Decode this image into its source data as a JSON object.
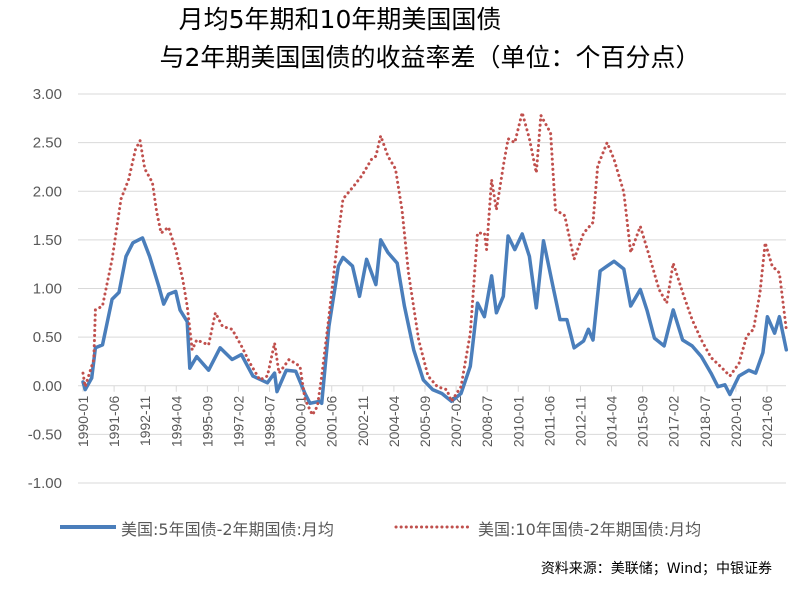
{
  "chart_data": {
    "type": "line",
    "title": [
      "月均5年期和10年期美国国债",
      "与2年期美国国债的收益率差（单位：个百分点）"
    ],
    "xlabel": "",
    "ylabel": "",
    "ylim": [
      -1.0,
      3.0
    ],
    "ytick_labels": [
      "3.00",
      "2.50",
      "2.00",
      "1.50",
      "1.00",
      "0.50",
      "0.00",
      "-0.50",
      "-1.00"
    ],
    "ytick_values": [
      3.0,
      2.5,
      2.0,
      1.5,
      1.0,
      0.5,
      0.0,
      -0.5,
      -1.0
    ],
    "xtick_labels": [
      "1990-01",
      "1991-06",
      "1992-11",
      "1994-04",
      "1995-09",
      "1997-02",
      "1998-07",
      "2000-01",
      "2001-06",
      "2002-11",
      "2004-04",
      "2005-09",
      "2007-02",
      "2008-07",
      "2010-01",
      "2011-06",
      "2012-11",
      "2014-04",
      "2015-09",
      "2017-02",
      "2018-07",
      "2020-01",
      "2021-06"
    ],
    "xlim_year": [
      1990.0,
      2022.4
    ],
    "grid": true,
    "legend_position": "bottom",
    "series": [
      {
        "name": "美国:5年国债-2年期国债:月均",
        "color": "#4A7EBB",
        "style": "solid",
        "points": [
          [
            1990.0,
            0.04
          ],
          [
            1990.1,
            -0.04
          ],
          [
            1990.4,
            0.08
          ],
          [
            1990.57,
            0.39
          ],
          [
            1990.9,
            0.42
          ],
          [
            1991.34,
            0.89
          ],
          [
            1991.66,
            0.96
          ],
          [
            1991.98,
            1.33
          ],
          [
            1992.3,
            1.47
          ],
          [
            1992.74,
            1.52
          ],
          [
            1993.07,
            1.33
          ],
          [
            1993.5,
            1.02
          ],
          [
            1993.72,
            0.84
          ],
          [
            1993.94,
            0.94
          ],
          [
            1994.27,
            0.97
          ],
          [
            1994.47,
            0.78
          ],
          [
            1994.8,
            0.66
          ],
          [
            1994.92,
            0.18
          ],
          [
            1995.24,
            0.3
          ],
          [
            1995.79,
            0.16
          ],
          [
            1996.32,
            0.39
          ],
          [
            1996.87,
            0.27
          ],
          [
            1997.3,
            0.32
          ],
          [
            1997.83,
            0.1
          ],
          [
            1998.5,
            0.03
          ],
          [
            1998.83,
            0.13
          ],
          [
            1998.94,
            -0.06
          ],
          [
            1999.37,
            0.16
          ],
          [
            1999.8,
            0.15
          ],
          [
            2000.23,
            -0.08
          ],
          [
            2000.46,
            -0.18
          ],
          [
            2000.9,
            -0.16
          ],
          [
            2001.0,
            -0.18
          ],
          [
            2001.33,
            0.61
          ],
          [
            2001.77,
            1.23
          ],
          [
            2001.98,
            1.32
          ],
          [
            2002.42,
            1.23
          ],
          [
            2002.74,
            0.92
          ],
          [
            2003.07,
            1.3
          ],
          [
            2003.5,
            1.04
          ],
          [
            2003.72,
            1.5
          ],
          [
            2004.05,
            1.37
          ],
          [
            2004.48,
            1.26
          ],
          [
            2004.81,
            0.82
          ],
          [
            2005.24,
            0.37
          ],
          [
            2005.68,
            0.06
          ],
          [
            2006.11,
            -0.04
          ],
          [
            2006.54,
            -0.08
          ],
          [
            2006.98,
            -0.16
          ],
          [
            2007.42,
            -0.08
          ],
          [
            2007.85,
            0.2
          ],
          [
            2008.18,
            0.85
          ],
          [
            2008.5,
            0.71
          ],
          [
            2008.83,
            1.13
          ],
          [
            2009.05,
            0.75
          ],
          [
            2009.37,
            0.92
          ],
          [
            2009.59,
            1.54
          ],
          [
            2009.9,
            1.4
          ],
          [
            2010.24,
            1.56
          ],
          [
            2010.57,
            1.33
          ],
          [
            2010.89,
            0.8
          ],
          [
            2011.22,
            1.49
          ],
          [
            2011.66,
            1.02
          ],
          [
            2011.98,
            0.68
          ],
          [
            2012.3,
            0.68
          ],
          [
            2012.63,
            0.39
          ],
          [
            2013.07,
            0.46
          ],
          [
            2013.29,
            0.58
          ],
          [
            2013.5,
            0.47
          ],
          [
            2013.83,
            1.18
          ],
          [
            2014.15,
            1.23
          ],
          [
            2014.47,
            1.28
          ],
          [
            2014.92,
            1.2
          ],
          [
            2015.24,
            0.82
          ],
          [
            2015.68,
            0.99
          ],
          [
            2016.0,
            0.77
          ],
          [
            2016.33,
            0.49
          ],
          [
            2016.78,
            0.41
          ],
          [
            2017.2,
            0.78
          ],
          [
            2017.63,
            0.47
          ],
          [
            2018.07,
            0.41
          ],
          [
            2018.5,
            0.3
          ],
          [
            2018.94,
            0.13
          ],
          [
            2019.26,
            -0.01
          ],
          [
            2019.58,
            0.01
          ],
          [
            2019.81,
            -0.09
          ],
          [
            2020.23,
            0.1
          ],
          [
            2020.68,
            0.16
          ],
          [
            2021.0,
            0.13
          ],
          [
            2021.33,
            0.34
          ],
          [
            2021.54,
            0.71
          ],
          [
            2021.87,
            0.54
          ],
          [
            2022.09,
            0.71
          ],
          [
            2022.41,
            0.37
          ]
        ]
      },
      {
        "name": "美国:10年国债-2年期国债:月均",
        "color": "#C0504D",
        "style": "dotted",
        "points": [
          [
            1990.0,
            0.13
          ],
          [
            1990.1,
            -0.01
          ],
          [
            1990.5,
            0.27
          ],
          [
            1990.57,
            0.78
          ],
          [
            1990.9,
            0.82
          ],
          [
            1991.34,
            1.3
          ],
          [
            1991.75,
            1.92
          ],
          [
            1992.1,
            2.12
          ],
          [
            1992.42,
            2.43
          ],
          [
            1992.63,
            2.52
          ],
          [
            1992.85,
            2.23
          ],
          [
            1993.2,
            2.09
          ],
          [
            1993.4,
            1.78
          ],
          [
            1993.6,
            1.57
          ],
          [
            1993.94,
            1.63
          ],
          [
            1994.27,
            1.4
          ],
          [
            1994.6,
            1.09
          ],
          [
            1994.8,
            0.82
          ],
          [
            1995.03,
            0.37
          ],
          [
            1995.24,
            0.47
          ],
          [
            1995.79,
            0.42
          ],
          [
            1996.1,
            0.75
          ],
          [
            1996.43,
            0.61
          ],
          [
            1996.87,
            0.58
          ],
          [
            1997.3,
            0.41
          ],
          [
            1997.7,
            0.23
          ],
          [
            1998.15,
            0.06
          ],
          [
            1998.5,
            0.1
          ],
          [
            1998.83,
            0.44
          ],
          [
            1999.03,
            0.13
          ],
          [
            1999.5,
            0.27
          ],
          [
            2000.0,
            0.2
          ],
          [
            2000.23,
            -0.14
          ],
          [
            2000.57,
            -0.3
          ],
          [
            2000.8,
            -0.21
          ],
          [
            2001.0,
            0.1
          ],
          [
            2001.33,
            0.71
          ],
          [
            2001.77,
            1.57
          ],
          [
            2001.98,
            1.92
          ],
          [
            2002.5,
            2.06
          ],
          [
            2002.85,
            2.16
          ],
          [
            2003.3,
            2.33
          ],
          [
            2003.5,
            2.36
          ],
          [
            2003.72,
            2.57
          ],
          [
            2004.05,
            2.36
          ],
          [
            2004.4,
            2.23
          ],
          [
            2004.7,
            1.81
          ],
          [
            2005.0,
            1.16
          ],
          [
            2005.47,
            0.47
          ],
          [
            2005.9,
            0.1
          ],
          [
            2006.33,
            -0.01
          ],
          [
            2006.76,
            -0.04
          ],
          [
            2006.98,
            -0.16
          ],
          [
            2007.42,
            -0.01
          ],
          [
            2007.85,
            0.54
          ],
          [
            2008.18,
            1.57
          ],
          [
            2008.5,
            1.57
          ],
          [
            2008.6,
            1.4
          ],
          [
            2008.83,
            2.12
          ],
          [
            2009.05,
            1.81
          ],
          [
            2009.37,
            2.26
          ],
          [
            2009.59,
            2.54
          ],
          [
            2009.9,
            2.5
          ],
          [
            2010.24,
            2.81
          ],
          [
            2010.57,
            2.54
          ],
          [
            2010.89,
            2.19
          ],
          [
            2011.1,
            2.78
          ],
          [
            2011.55,
            2.6
          ],
          [
            2011.77,
            1.81
          ],
          [
            2012.2,
            1.75
          ],
          [
            2012.63,
            1.3
          ],
          [
            2013.07,
            1.57
          ],
          [
            2013.5,
            1.68
          ],
          [
            2013.72,
            2.26
          ],
          [
            2014.15,
            2.5
          ],
          [
            2014.47,
            2.33
          ],
          [
            2014.92,
            1.99
          ],
          [
            2015.24,
            1.37
          ],
          [
            2015.68,
            1.64
          ],
          [
            2016.1,
            1.33
          ],
          [
            2016.55,
            0.99
          ],
          [
            2016.9,
            0.85
          ],
          [
            2017.2,
            1.26
          ],
          [
            2017.63,
            0.96
          ],
          [
            2018.07,
            0.68
          ],
          [
            2018.5,
            0.47
          ],
          [
            2018.94,
            0.29
          ],
          [
            2019.37,
            0.2
          ],
          [
            2019.81,
            0.1
          ],
          [
            2020.23,
            0.23
          ],
          [
            2020.58,
            0.51
          ],
          [
            2020.9,
            0.58
          ],
          [
            2021.2,
            0.96
          ],
          [
            2021.44,
            1.47
          ],
          [
            2021.76,
            1.23
          ],
          [
            2022.09,
            1.16
          ],
          [
            2022.41,
            0.58
          ]
        ]
      }
    ],
    "source": "资料来源：美联储；Wind；中银证券"
  }
}
